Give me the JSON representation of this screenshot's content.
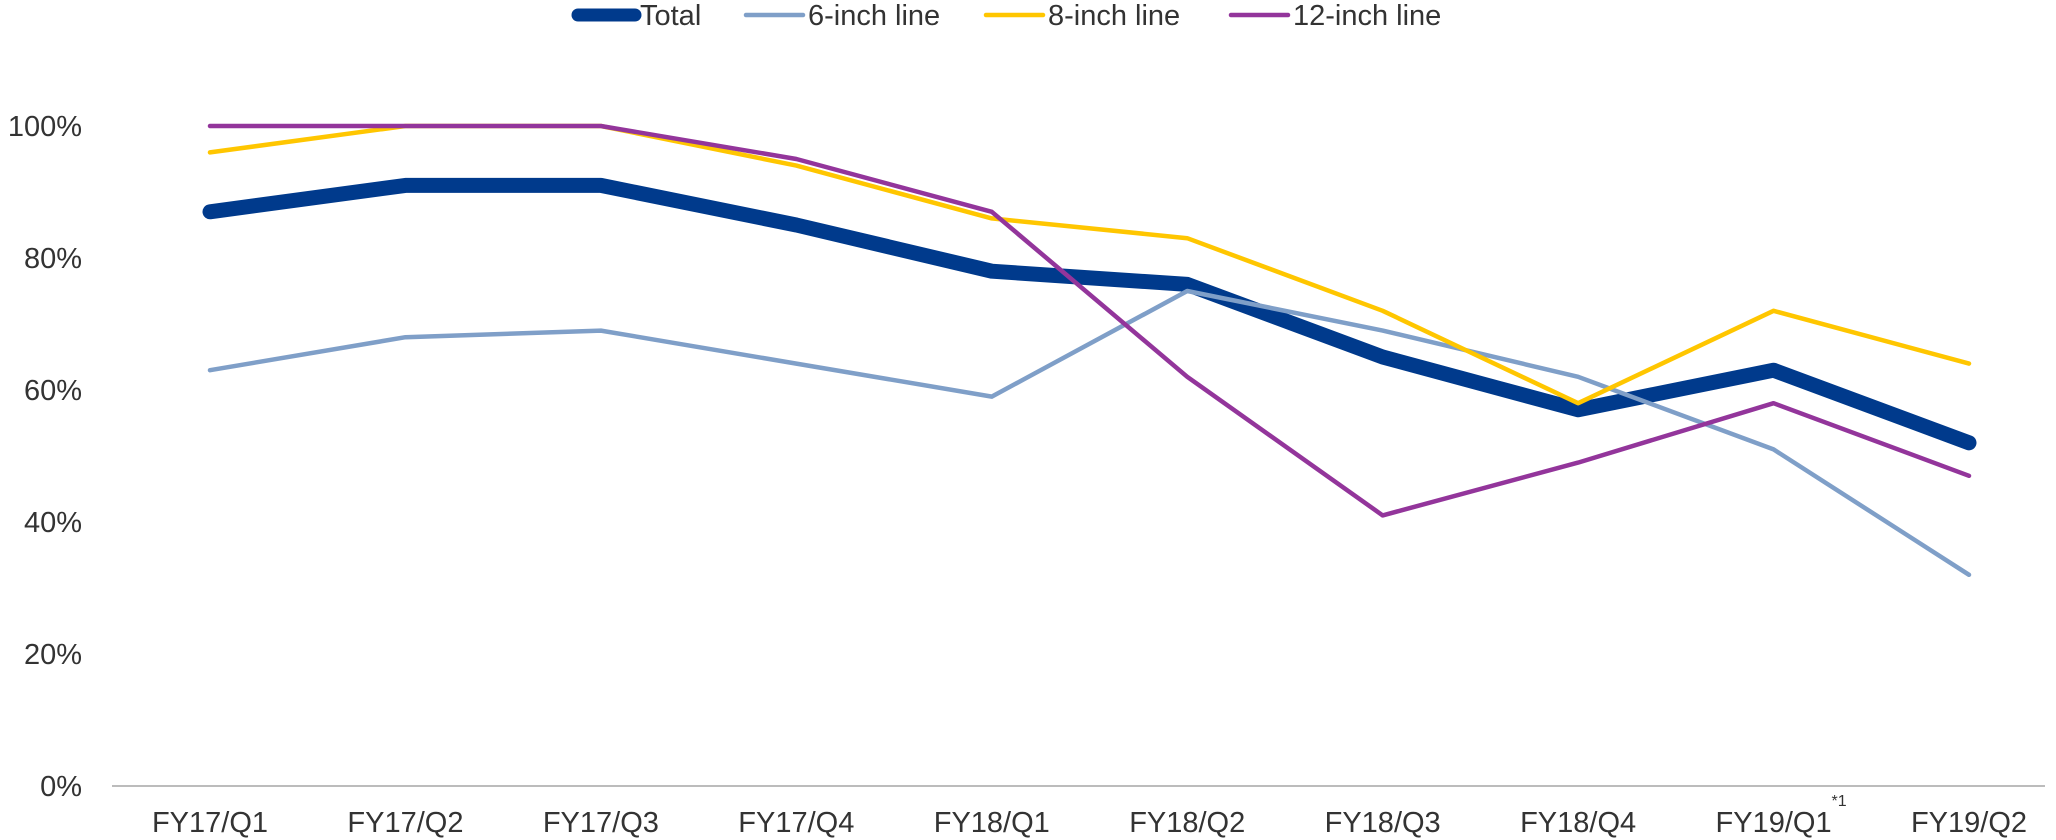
{
  "chart_data": {
    "type": "line",
    "categories": [
      "FY17/Q1",
      "FY17/Q2",
      "FY17/Q3",
      "FY17/Q4",
      "FY18/Q1",
      "FY18/Q2",
      "FY18/Q3",
      "FY18/Q4",
      "FY19/Q1",
      "FY19/Q2"
    ],
    "category_footnotes": {
      "FY19/Q1": "*1"
    },
    "y_tick_labels": [
      "0%",
      "20%",
      "40%",
      "60%",
      "80%",
      "100%"
    ],
    "y_ticks": [
      0,
      20,
      40,
      60,
      80,
      100
    ],
    "ylim": [
      0,
      100
    ],
    "grid": false,
    "legend_position": "top-center",
    "title": "",
    "xlabel": "",
    "ylabel": "",
    "series": [
      {
        "name": "Total",
        "color": "#003A8C",
        "emphasis": "thick",
        "values": [
          87,
          91,
          91,
          85,
          78,
          76,
          65,
          57,
          63,
          52
        ]
      },
      {
        "name": "6-inch line",
        "color": "#7F9FC8",
        "emphasis": "thin",
        "values": [
          63,
          68,
          69,
          64,
          59,
          75,
          69,
          62,
          51,
          32
        ]
      },
      {
        "name": "8-inch line",
        "color": "#FFC600",
        "emphasis": "thin",
        "values": [
          96,
          100,
          100,
          94,
          86,
          83,
          72,
          58,
          72,
          64
        ]
      },
      {
        "name": "12-inch line",
        "color": "#93359B",
        "emphasis": "thin",
        "values": [
          100,
          100,
          100,
          95,
          87,
          62,
          41,
          49,
          58,
          47
        ]
      }
    ]
  }
}
